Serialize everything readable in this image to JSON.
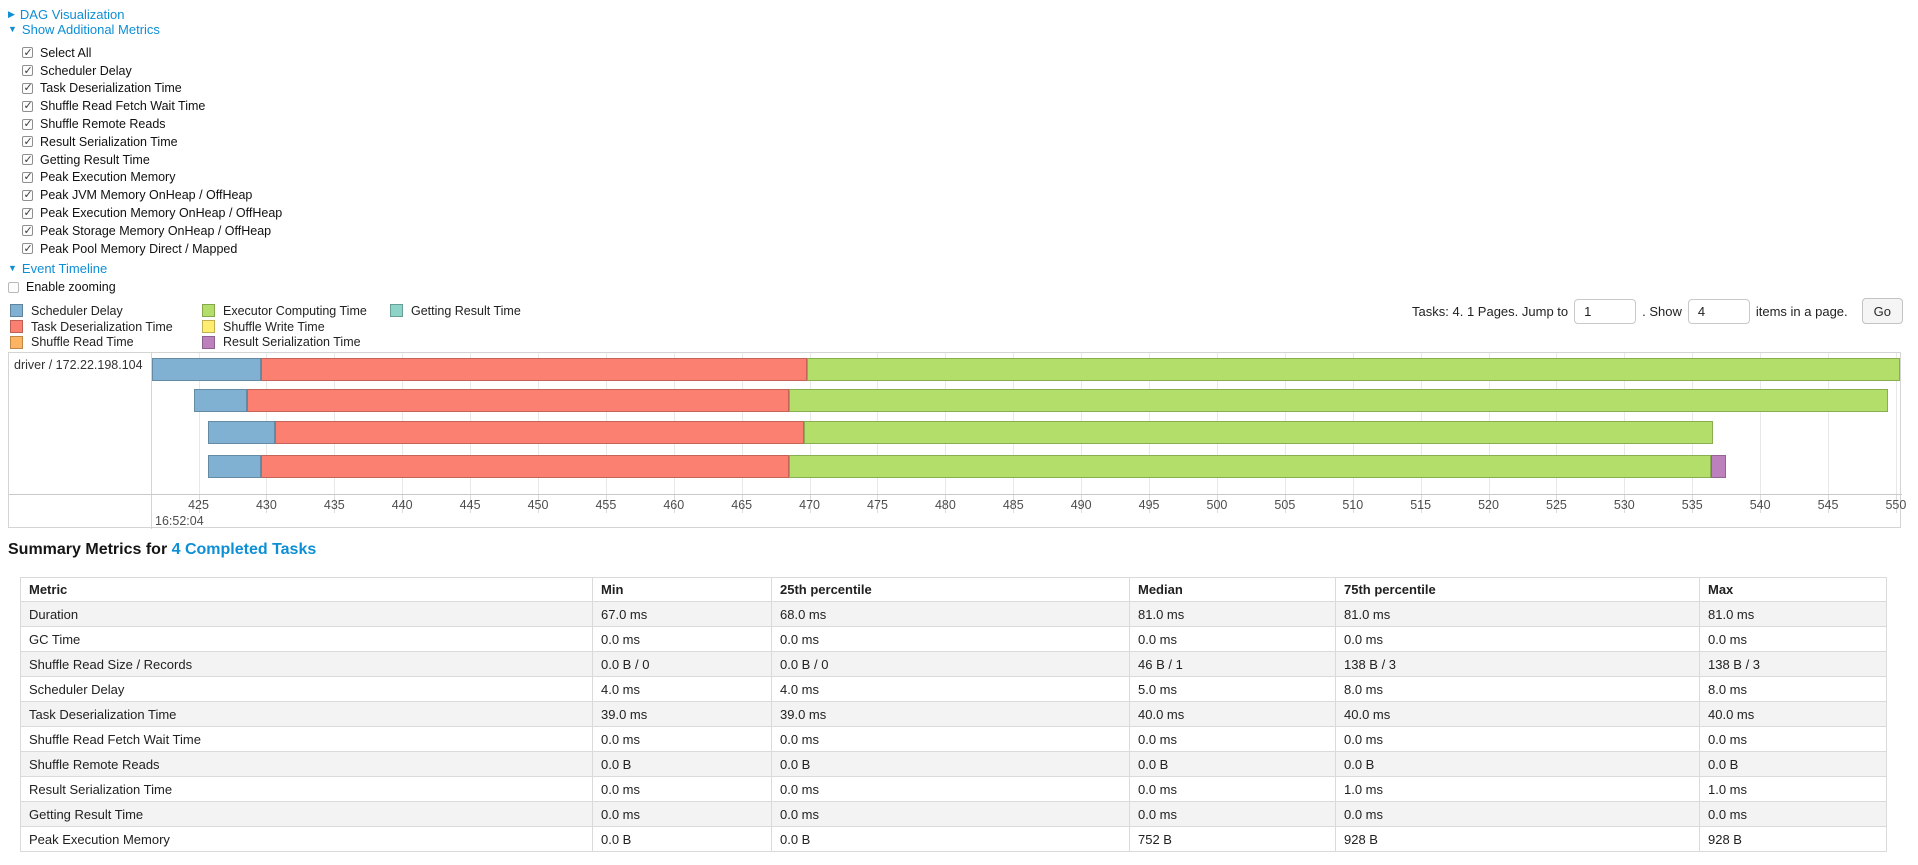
{
  "controls": {
    "dag_label": "DAG Visualization",
    "metrics_label": "Show Additional Metrics",
    "metric_checkboxes": [
      {
        "label": "Select All",
        "checked": true
      },
      {
        "label": "Scheduler Delay",
        "checked": true
      },
      {
        "label": "Task Deserialization Time",
        "checked": true
      },
      {
        "label": "Shuffle Read Fetch Wait Time",
        "checked": true
      },
      {
        "label": "Shuffle Remote Reads",
        "checked": true
      },
      {
        "label": "Result Serialization Time",
        "checked": true
      },
      {
        "label": "Getting Result Time",
        "checked": true
      },
      {
        "label": "Peak Execution Memory",
        "checked": true
      },
      {
        "label": "Peak JVM Memory OnHeap / OffHeap",
        "checked": true
      },
      {
        "label": "Peak Execution Memory OnHeap / OffHeap",
        "checked": true
      },
      {
        "label": "Peak Storage Memory OnHeap / OffHeap",
        "checked": true
      },
      {
        "label": "Peak Pool Memory Direct / Mapped",
        "checked": true
      }
    ],
    "event_timeline_label": "Event Timeline",
    "enable_zooming": {
      "label": "Enable zooming",
      "checked": false
    }
  },
  "palette": {
    "scheduler-delay": "#80B1D3",
    "task-deserialization": "#FB8072",
    "shuffle-read": "#FDB462",
    "executor-computing": "#B3DE69",
    "shuffle-write": "#FFED6F",
    "result-serialization": "#BC80BD",
    "getting-result": "#8DD3C7"
  },
  "legend": {
    "columns": [
      [
        {
          "key": "scheduler-delay",
          "label": "Scheduler Delay"
        },
        {
          "key": "task-deserialization",
          "label": "Task Deserialization Time"
        },
        {
          "key": "shuffle-read",
          "label": "Shuffle Read Time"
        }
      ],
      [
        {
          "key": "executor-computing",
          "label": "Executor Computing Time"
        },
        {
          "key": "shuffle-write",
          "label": "Shuffle Write Time"
        },
        {
          "key": "result-serialization",
          "label": "Result Serialization Time"
        }
      ],
      [
        {
          "key": "getting-result",
          "label": "Getting Result Time"
        }
      ]
    ]
  },
  "pagination": {
    "summary_text": "Tasks: 4. 1 Pages. Jump to",
    "jump_value": "1",
    "show_label": ". Show",
    "show_value": "4",
    "suffix_text": "items in a page.",
    "go_label": "Go"
  },
  "chart_data": {
    "type": "timeline-gantt",
    "group_label": "driver / 172.22.198.104",
    "x_axis": {
      "min": 421.5,
      "max": 550.3,
      "tick_step": 5,
      "ticks": [
        425,
        430,
        435,
        440,
        445,
        450,
        455,
        460,
        465,
        470,
        475,
        480,
        485,
        490,
        495,
        500,
        505,
        510,
        515,
        520,
        525,
        530,
        535,
        540,
        545,
        550
      ],
      "time_label": "16:52:04"
    },
    "rows": [
      {
        "task": 1,
        "segments": [
          {
            "metric": "scheduler-delay",
            "from": 421.6,
            "to": 429.6
          },
          {
            "metric": "task-deserialization",
            "from": 429.6,
            "to": 469.8
          },
          {
            "metric": "executor-computing",
            "from": 469.8,
            "to": 550.3
          }
        ]
      },
      {
        "task": 2,
        "segments": [
          {
            "metric": "scheduler-delay",
            "from": 424.7,
            "to": 428.6
          },
          {
            "metric": "task-deserialization",
            "from": 428.6,
            "to": 468.5
          },
          {
            "metric": "executor-computing",
            "from": 468.5,
            "to": 549.4
          }
        ]
      },
      {
        "task": 3,
        "segments": [
          {
            "metric": "scheduler-delay",
            "from": 425.7,
            "to": 430.6
          },
          {
            "metric": "task-deserialization",
            "from": 430.6,
            "to": 469.6
          },
          {
            "metric": "executor-computing",
            "from": 469.6,
            "to": 536.5
          }
        ]
      },
      {
        "task": 4,
        "segments": [
          {
            "metric": "scheduler-delay",
            "from": 425.7,
            "to": 429.6
          },
          {
            "metric": "task-deserialization",
            "from": 429.6,
            "to": 468.5
          },
          {
            "metric": "executor-computing",
            "from": 468.5,
            "to": 536.4
          },
          {
            "metric": "result-serialization",
            "from": 536.4,
            "to": 537.5
          }
        ]
      }
    ]
  },
  "summary": {
    "heading_prefix": "Summary Metrics for ",
    "heading_link": "4 Completed Tasks"
  },
  "table": {
    "headers": [
      "Metric",
      "Min",
      "25th percentile",
      "Median",
      "75th percentile",
      "Max"
    ],
    "rows": [
      [
        "Duration",
        "67.0 ms",
        "68.0 ms",
        "81.0 ms",
        "81.0 ms",
        "81.0 ms"
      ],
      [
        "GC Time",
        "0.0 ms",
        "0.0 ms",
        "0.0 ms",
        "0.0 ms",
        "0.0 ms"
      ],
      [
        "Shuffle Read Size / Records",
        "0.0 B / 0",
        "0.0 B / 0",
        "46 B / 1",
        "138 B / 3",
        "138 B / 3"
      ],
      [
        "Scheduler Delay",
        "4.0 ms",
        "4.0 ms",
        "5.0 ms",
        "8.0 ms",
        "8.0 ms"
      ],
      [
        "Task Deserialization Time",
        "39.0 ms",
        "39.0 ms",
        "40.0 ms",
        "40.0 ms",
        "40.0 ms"
      ],
      [
        "Shuffle Read Fetch Wait Time",
        "0.0 ms",
        "0.0 ms",
        "0.0 ms",
        "0.0 ms",
        "0.0 ms"
      ],
      [
        "Shuffle Remote Reads",
        "0.0 B",
        "0.0 B",
        "0.0 B",
        "0.0 B",
        "0.0 B"
      ],
      [
        "Result Serialization Time",
        "0.0 ms",
        "0.0 ms",
        "0.0 ms",
        "1.0 ms",
        "1.0 ms"
      ],
      [
        "Getting Result Time",
        "0.0 ms",
        "0.0 ms",
        "0.0 ms",
        "0.0 ms",
        "0.0 ms"
      ],
      [
        "Peak Execution Memory",
        "0.0 B",
        "0.0 B",
        "752 B",
        "928 B",
        "928 B"
      ]
    ]
  }
}
